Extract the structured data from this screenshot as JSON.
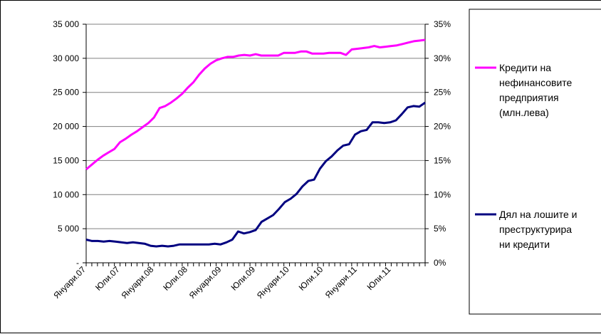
{
  "chart_data": {
    "type": "line",
    "title": "",
    "x_tick_labels": [
      "Януари.07",
      "Юли.07",
      "Януари.08",
      "Юли.08",
      "Януари.09",
      "Юли.09",
      "Януари.10",
      "Юли.10",
      "Януари.11",
      "Юли.11"
    ],
    "y_left": {
      "ylim": [
        0,
        35000
      ],
      "tick_labels": [
        "-",
        "5 000",
        "10 000",
        "15 000",
        "20 000",
        "25 000",
        "30 000",
        "35 000"
      ]
    },
    "y_right": {
      "ylim": [
        0,
        35
      ],
      "tick_labels": [
        "0%",
        "5%",
        "10%",
        "15%",
        "20%",
        "25%",
        "30%",
        "35%"
      ]
    },
    "grid": "horizontal",
    "legend_position": "right",
    "series": [
      {
        "name": "Кредити на нефинансовите предприятия (млн.лева)",
        "legend_lines": [
          "Кредити на",
          "нефинансовите",
          "предприятия",
          "(млн.лева)"
        ],
        "axis": "left",
        "color": "#ff00ff",
        "values": [
          13700,
          14400,
          15100,
          15700,
          16200,
          16700,
          17700,
          18200,
          18800,
          19300,
          19900,
          20500,
          21300,
          22700,
          23000,
          23500,
          24100,
          24800,
          25700,
          26500,
          27600,
          28500,
          29200,
          29700,
          30000,
          30200,
          30200,
          30400,
          30500,
          30400,
          30600,
          30400,
          30400,
          30400,
          30400,
          30800,
          30800,
          30800,
          31000,
          31000,
          30700,
          30700,
          30700,
          30800,
          30800,
          30800,
          30500,
          31300,
          31400,
          31500,
          31600,
          31800,
          31600,
          31700,
          31800,
          31900,
          32100,
          32300,
          32500,
          32600,
          32700
        ]
      },
      {
        "name": "Дял на лошите и преструктурирани кредити",
        "legend_lines": [
          "Дял на лошите и",
          "преструктурира",
          "ни кредити"
        ],
        "axis": "right",
        "color": "#000080",
        "values": [
          3.4,
          3.2,
          3.2,
          3.1,
          3.2,
          3.1,
          3.0,
          2.9,
          3.0,
          2.9,
          2.8,
          2.5,
          2.4,
          2.5,
          2.4,
          2.5,
          2.7,
          2.7,
          2.7,
          2.7,
          2.7,
          2.7,
          2.8,
          2.7,
          3.0,
          3.4,
          4.6,
          4.3,
          4.5,
          4.8,
          6.0,
          6.5,
          7.0,
          7.9,
          8.9,
          9.4,
          10.1,
          11.2,
          12.0,
          12.2,
          13.8,
          14.9,
          15.6,
          16.5,
          17.2,
          17.4,
          18.8,
          19.3,
          19.5,
          20.6,
          20.6,
          20.5,
          20.6,
          20.9,
          21.8,
          22.8,
          23.0,
          22.9,
          23.5
        ]
      }
    ]
  }
}
